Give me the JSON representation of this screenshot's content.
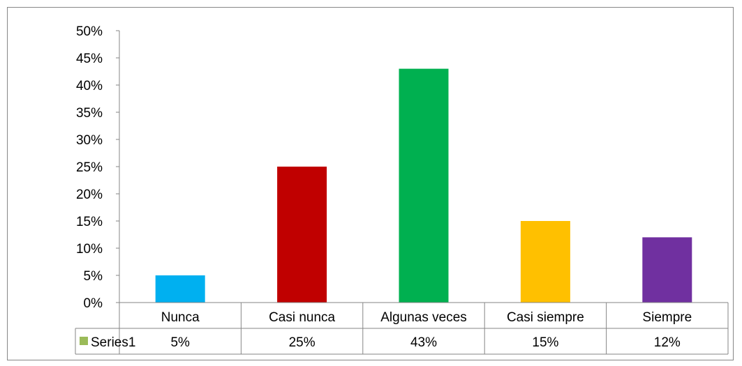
{
  "chart_data": {
    "type": "bar",
    "title": "",
    "xlabel": "",
    "ylabel": "",
    "categories": [
      "Nunca",
      "Casi nunca",
      "Algunas veces",
      "Casi siempre",
      "Siempre"
    ],
    "series": [
      {
        "name": "Series1",
        "values": [
          5,
          25,
          43,
          15,
          12
        ],
        "value_labels": [
          "5%",
          "25%",
          "43%",
          "15%",
          "12%"
        ],
        "legend_color": "#9BBB59"
      }
    ],
    "bar_colors": [
      "#00B0F0",
      "#C00000",
      "#00B050",
      "#FFC000",
      "#7030A0"
    ],
    "ylim": [
      0,
      50
    ],
    "y_ticks": [
      0,
      5,
      10,
      15,
      20,
      25,
      30,
      35,
      40,
      45,
      50
    ],
    "y_tick_labels": [
      "0%",
      "5%",
      "10%",
      "15%",
      "20%",
      "25%",
      "30%",
      "35%",
      "40%",
      "45%",
      "50%"
    ],
    "grid": false,
    "legend": "data-table-left",
    "data_table": true
  }
}
